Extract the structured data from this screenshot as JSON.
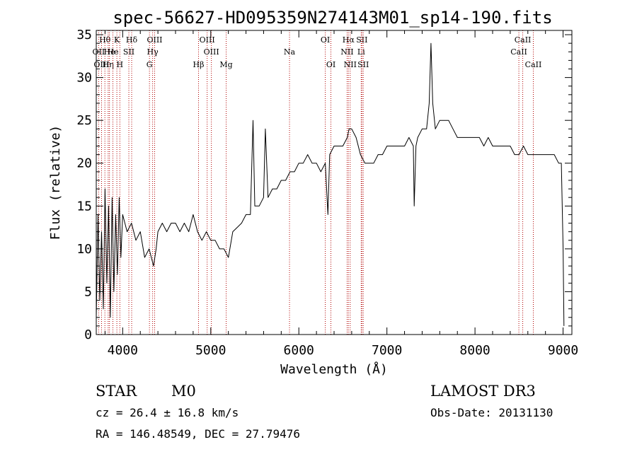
{
  "chart_data": {
    "type": "line",
    "title": "spec-56627-HD095359N274143M01_sp14-190.fits",
    "xlabel": "Wavelength (Å)",
    "ylabel": "Flux (relative)",
    "xlim": [
      3700,
      9100
    ],
    "ylim": [
      0,
      35.5
    ],
    "x_ticks": [
      4000,
      5000,
      6000,
      7000,
      8000,
      9000
    ],
    "y_ticks": [
      0,
      5,
      10,
      15,
      20,
      25,
      30,
      35
    ],
    "series": [
      {
        "name": "flux",
        "points": [
          [
            3700,
            2
          ],
          [
            3720,
            14
          ],
          [
            3740,
            4
          ],
          [
            3760,
            12
          ],
          [
            3780,
            3
          ],
          [
            3800,
            17
          ],
          [
            3820,
            6
          ],
          [
            3840,
            15
          ],
          [
            3860,
            2
          ],
          [
            3880,
            16
          ],
          [
            3900,
            5
          ],
          [
            3920,
            14
          ],
          [
            3940,
            7
          ],
          [
            3960,
            16
          ],
          [
            3980,
            9
          ],
          [
            4000,
            14
          ],
          [
            4050,
            12
          ],
          [
            4100,
            13
          ],
          [
            4150,
            11
          ],
          [
            4200,
            12
          ],
          [
            4250,
            9
          ],
          [
            4300,
            10
          ],
          [
            4350,
            8
          ],
          [
            4380,
            10
          ],
          [
            4400,
            12
          ],
          [
            4450,
            13
          ],
          [
            4500,
            12
          ],
          [
            4550,
            13
          ],
          [
            4600,
            13
          ],
          [
            4650,
            12
          ],
          [
            4700,
            13
          ],
          [
            4750,
            12
          ],
          [
            4800,
            14
          ],
          [
            4850,
            12
          ],
          [
            4900,
            11
          ],
          [
            4950,
            12
          ],
          [
            5000,
            11
          ],
          [
            5050,
            11
          ],
          [
            5100,
            10
          ],
          [
            5150,
            10
          ],
          [
            5200,
            9
          ],
          [
            5250,
            12
          ],
          [
            5300,
            12.5
          ],
          [
            5350,
            13
          ],
          [
            5400,
            14
          ],
          [
            5450,
            14
          ],
          [
            5480,
            25
          ],
          [
            5500,
            15
          ],
          [
            5550,
            15
          ],
          [
            5600,
            16
          ],
          [
            5620,
            24
          ],
          [
            5650,
            16
          ],
          [
            5700,
            17
          ],
          [
            5750,
            17
          ],
          [
            5800,
            18
          ],
          [
            5850,
            18
          ],
          [
            5900,
            19
          ],
          [
            5950,
            19
          ],
          [
            6000,
            20
          ],
          [
            6050,
            20
          ],
          [
            6100,
            21
          ],
          [
            6150,
            20
          ],
          [
            6200,
            20
          ],
          [
            6250,
            19
          ],
          [
            6300,
            20
          ],
          [
            6330,
            14
          ],
          [
            6350,
            21
          ],
          [
            6400,
            22
          ],
          [
            6450,
            22
          ],
          [
            6500,
            22
          ],
          [
            6550,
            23
          ],
          [
            6570,
            24
          ],
          [
            6600,
            24
          ],
          [
            6650,
            23
          ],
          [
            6700,
            21
          ],
          [
            6750,
            20
          ],
          [
            6800,
            20
          ],
          [
            6850,
            20
          ],
          [
            6900,
            21
          ],
          [
            6950,
            21
          ],
          [
            7000,
            22
          ],
          [
            7050,
            22
          ],
          [
            7100,
            22
          ],
          [
            7150,
            22
          ],
          [
            7200,
            22
          ],
          [
            7250,
            23
          ],
          [
            7300,
            22
          ],
          [
            7310,
            15
          ],
          [
            7330,
            22
          ],
          [
            7350,
            23
          ],
          [
            7400,
            24
          ],
          [
            7450,
            24
          ],
          [
            7480,
            27
          ],
          [
            7500,
            34
          ],
          [
            7520,
            27
          ],
          [
            7550,
            24
          ],
          [
            7600,
            25
          ],
          [
            7650,
            25
          ],
          [
            7700,
            25
          ],
          [
            7750,
            24
          ],
          [
            7800,
            23
          ],
          [
            7850,
            23
          ],
          [
            7900,
            23
          ],
          [
            7950,
            23
          ],
          [
            8000,
            23
          ],
          [
            8050,
            23
          ],
          [
            8100,
            22
          ],
          [
            8150,
            23
          ],
          [
            8200,
            22
          ],
          [
            8250,
            22
          ],
          [
            8300,
            22
          ],
          [
            8350,
            22
          ],
          [
            8400,
            22
          ],
          [
            8450,
            21
          ],
          [
            8500,
            21
          ],
          [
            8550,
            22
          ],
          [
            8600,
            21
          ],
          [
            8650,
            21
          ],
          [
            8700,
            21
          ],
          [
            8750,
            21
          ],
          [
            8800,
            21
          ],
          [
            8850,
            21
          ],
          [
            8900,
            21
          ],
          [
            8950,
            20
          ],
          [
            8980,
            20
          ],
          [
            9000,
            10
          ],
          [
            9010,
            1
          ]
        ]
      }
    ],
    "spectral_lines": [
      {
        "label": "Hθ",
        "wavelength": 3798,
        "row": 1
      },
      {
        "label": "OII",
        "wavelength": 3727,
        "row": 2
      },
      {
        "label": "OIII",
        "wavelength": 3760,
        "row": 3
      },
      {
        "label": "He",
        "wavelength": 3850,
        "row": 2
      },
      {
        "label": "K",
        "wavelength": 3934,
        "row": 1
      },
      {
        "label": "Hη",
        "wavelength": 3835,
        "row": 3
      },
      {
        "label": "He",
        "wavelength": 3889,
        "row": 2
      },
      {
        "label": "H",
        "wavelength": 3968,
        "row": 3
      },
      {
        "label": "SII",
        "wavelength": 4070,
        "row": 2
      },
      {
        "label": "Hδ",
        "wavelength": 4102,
        "row": 1
      },
      {
        "label": "OIII",
        "wavelength": 4363,
        "row": 1
      },
      {
        "label": "Hγ",
        "wavelength": 4340,
        "row": 2
      },
      {
        "label": "G",
        "wavelength": 4304,
        "row": 3
      },
      {
        "label": "Hβ",
        "wavelength": 4861,
        "row": 3
      },
      {
        "label": "OIII",
        "wavelength": 4959,
        "row": 1
      },
      {
        "label": "OIII",
        "wavelength": 5007,
        "row": 2
      },
      {
        "label": "Mg",
        "wavelength": 5175,
        "row": 3
      },
      {
        "label": "Na",
        "wavelength": 5894,
        "row": 2
      },
      {
        "label": "OI",
        "wavelength": 6300,
        "row": 1
      },
      {
        "label": "OI",
        "wavelength": 6364,
        "row": 3
      },
      {
        "label": "Hα",
        "wavelength": 6563,
        "row": 1
      },
      {
        "label": "NII",
        "wavelength": 6548,
        "row": 2
      },
      {
        "label": "NII",
        "wavelength": 6583,
        "row": 3
      },
      {
        "label": "SII",
        "wavelength": 6716,
        "row": 1
      },
      {
        "label": "Li",
        "wavelength": 6708,
        "row": 2
      },
      {
        "label": "SII",
        "wavelength": 6731,
        "row": 3
      },
      {
        "label": "CaII",
        "wavelength": 8542,
        "row": 1
      },
      {
        "label": "CaII",
        "wavelength": 8498,
        "row": 2
      },
      {
        "label": "CaII",
        "wavelength": 8662,
        "row": 3
      }
    ]
  },
  "info": {
    "class": "STAR",
    "subclass": "M0",
    "survey": "LAMOST DR3",
    "cz": "cz = 26.4 ± 16.8 km/s",
    "obs_date": "Obs-Date: 20131130",
    "coords": "RA = 146.48549, DEC =  27.79476"
  }
}
